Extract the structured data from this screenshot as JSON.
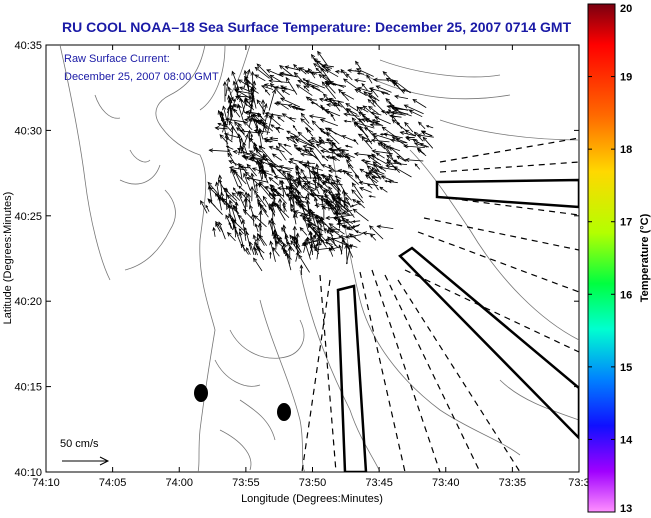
{
  "title": "RU COOL  NOAA–18  Sea Surface Temperature:  December 25, 2007 0714 GMT",
  "subtitle_line1": "Raw Surface Current:",
  "subtitle_line2": "December 25, 2007 08:00 GMT",
  "xlabel": "Longitude (Degrees:Minutes)",
  "ylabel": "Latitude (Degrees:Minutes)",
  "x_ticks": [
    "74:10",
    "74:05",
    "74:00",
    "73:55",
    "73:50",
    "73:45",
    "73:40",
    "73:35",
    "73:3"
  ],
  "y_ticks": [
    "40:35",
    "40:30",
    "40:25",
    "40:20",
    "40:15",
    "40:10"
  ],
  "scale_label": "50 cm/s",
  "colorbar": {
    "label": "Temperature (°C)",
    "ticks": [
      "20",
      "19",
      "18",
      "17",
      "16",
      "15",
      "14",
      "13"
    ],
    "min": 13,
    "max": 20
  },
  "colors": {
    "title": "#1a1aa6",
    "vectors": "#000000",
    "bathymetry": "#777777"
  }
}
